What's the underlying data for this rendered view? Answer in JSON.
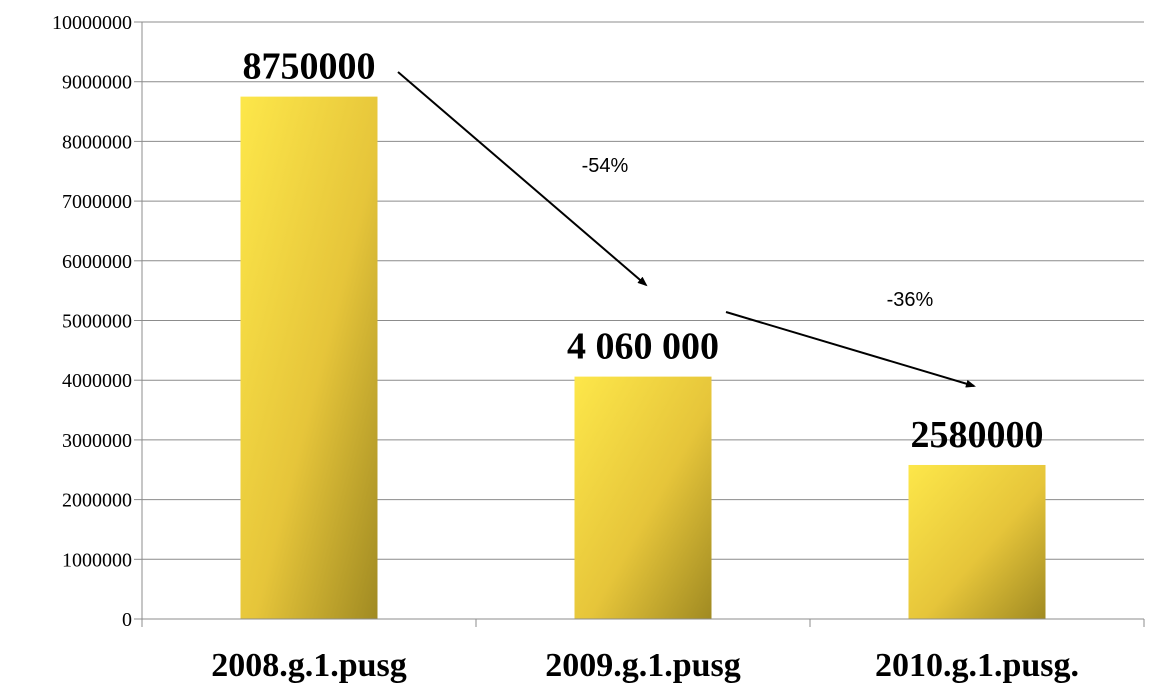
{
  "chart_data": {
    "type": "bar",
    "title": "",
    "xlabel": "",
    "ylabel": "",
    "categories": [
      "2008.g.1.pusg",
      "2009.g.1.pusg",
      "2010.g.1.pusg."
    ],
    "values": [
      8750000,
      4060000,
      2580000
    ],
    "data_labels": [
      "8750000",
      "4 060 000",
      "2580000"
    ],
    "ylim": [
      0,
      10000000
    ],
    "yticks": [
      0,
      1000000,
      2000000,
      3000000,
      4000000,
      5000000,
      6000000,
      7000000,
      8000000,
      9000000,
      10000000
    ],
    "ytick_labels": [
      "0",
      "1000000",
      "2000000",
      "3000000",
      "4000000",
      "5000000",
      "6000000",
      "7000000",
      "8000000",
      "9000000",
      "10000000"
    ],
    "grid": true,
    "legend": "none",
    "annotations": [
      {
        "text": "-54%",
        "from_category": 0,
        "to_category": 1
      },
      {
        "text": "-36%",
        "from_category": 1,
        "to_category": 2
      }
    ],
    "colors": {
      "bar_light": "#fde74a",
      "bar_mid": "#e6c53a",
      "bar_dark": "#a08a22",
      "grid": "#8c8c8c",
      "axis": "#8c8c8c",
      "arrow": "#000000"
    }
  }
}
